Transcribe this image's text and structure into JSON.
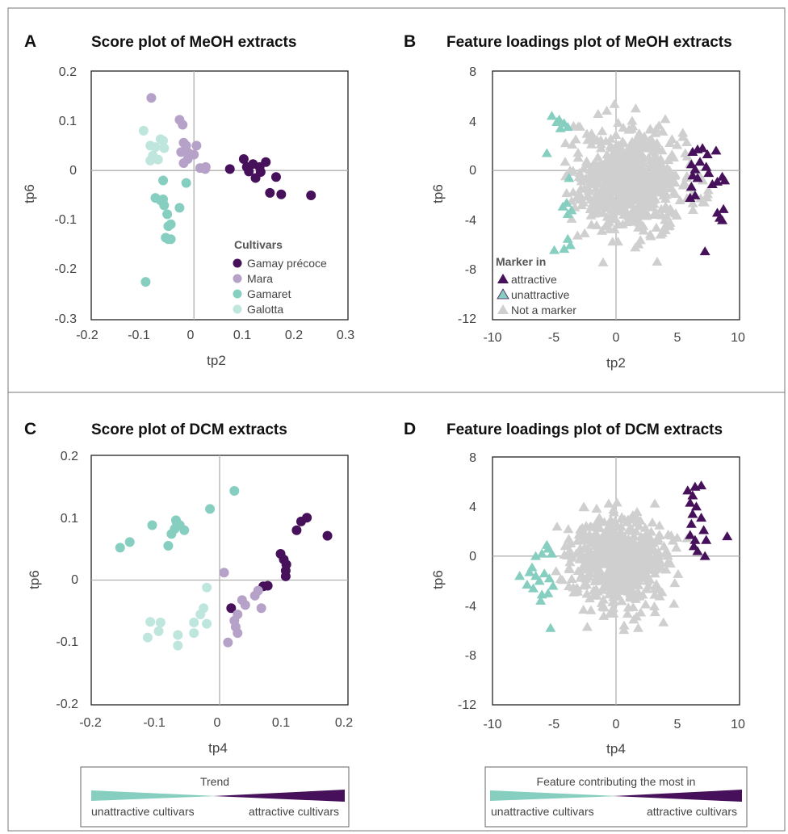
{
  "colors": {
    "gamay_precoce": "#46105a",
    "mara": "#b6a2c8",
    "gamaret": "#86cfc0",
    "galotta": "#bfe6dd",
    "attractive": "#46105a",
    "unattractive": "#86cfc0",
    "not_marker": "#cfcfcf"
  },
  "chart_data": [
    {
      "panel": "A",
      "type": "scatter",
      "title": "Score plot of MeOH extracts",
      "xlabel": "tp2",
      "ylabel": "tp6",
      "xlim": [
        -0.2,
        0.3
      ],
      "ylim": [
        -0.3,
        0.2
      ],
      "xticks": [
        "-0.2",
        "-0.1",
        "0",
        "0.1",
        "0.2",
        "0.3"
      ],
      "yticks": [
        "0.2",
        "0.1",
        "0",
        "-0.1",
        "-0.2",
        "-0.3"
      ],
      "legend_title": "Cultivars",
      "legend_position": "bottom-right",
      "series": [
        {
          "name": "Gamay précoce",
          "color": "gamay_precoce",
          "points": [
            [
              0.07,
              0.003
            ],
            [
              0.097,
              0.023
            ],
            [
              0.103,
              0.007
            ],
            [
              0.107,
              -0.002
            ],
            [
              0.115,
              0.013
            ],
            [
              0.128,
              0.007
            ],
            [
              0.13,
              -0.003
            ],
            [
              0.14,
              0.017
            ],
            [
              0.148,
              -0.045
            ],
            [
              0.12,
              -0.015
            ],
            [
              0.16,
              -0.013
            ],
            [
              0.17,
              -0.048
            ],
            [
              0.228,
              -0.05
            ]
          ]
        },
        {
          "name": "Mara",
          "color": "mara",
          "points": [
            [
              -0.083,
              0.146
            ],
            [
              -0.028,
              0.102
            ],
            [
              -0.022,
              0.092
            ],
            [
              -0.02,
              0.056
            ],
            [
              -0.015,
              0.05
            ],
            [
              -0.025,
              0.037
            ],
            [
              -0.01,
              0.035
            ],
            [
              0.0,
              0.032
            ],
            [
              0.005,
              0.05
            ],
            [
              -0.02,
              0.015
            ],
            [
              -0.012,
              0.023
            ],
            [
              0.023,
              0.007
            ],
            [
              0.012,
              0.005
            ],
            [
              0.022,
              0.003
            ]
          ]
        },
        {
          "name": "Gamaret",
          "color": "gamaret",
          "points": [
            [
              -0.06,
              -0.02
            ],
            [
              -0.075,
              -0.055
            ],
            [
              -0.065,
              -0.06
            ],
            [
              -0.06,
              -0.058
            ],
            [
              -0.058,
              -0.07
            ],
            [
              -0.052,
              -0.088
            ],
            [
              -0.05,
              -0.112
            ],
            [
              -0.045,
              -0.108
            ],
            [
              -0.055,
              -0.135
            ],
            [
              -0.045,
              -0.138
            ],
            [
              -0.05,
              -0.138
            ],
            [
              -0.028,
              -0.075
            ],
            [
              -0.015,
              -0.025
            ],
            [
              -0.094,
              -0.224
            ]
          ]
        },
        {
          "name": "Galotta",
          "color": "galotta",
          "points": [
            [
              -0.098,
              0.08
            ],
            [
              -0.065,
              0.063
            ],
            [
              -0.06,
              0.06
            ],
            [
              -0.085,
              0.05
            ],
            [
              -0.075,
              0.047
            ],
            [
              -0.058,
              0.045
            ],
            [
              -0.08,
              0.03
            ],
            [
              -0.085,
              0.02
            ],
            [
              -0.07,
              0.022
            ]
          ]
        }
      ]
    },
    {
      "panel": "B",
      "type": "scatter",
      "title": "Feature loadings plot of MeOH extracts",
      "xlabel": "tp2",
      "ylabel": "tp6",
      "xlim": [
        -10,
        10
      ],
      "ylim": [
        -12,
        8
      ],
      "xticks": [
        "-10",
        "-5",
        "0",
        "5",
        "10"
      ],
      "yticks": [
        "8",
        "4",
        "0",
        "-4",
        "-8",
        "-12"
      ],
      "legend_title": "Marker in",
      "legend_position": "bottom-left",
      "legend": [
        "attractive",
        "unattractive",
        "Not a marker"
      ],
      "not_marker_cloud": {
        "center": [
          1.2,
          -0.8
        ],
        "spread": [
          4.0,
          3.2
        ],
        "count": 700,
        "xrange": [
          -4.2,
          7.5
        ],
        "yrange": [
          -8.5,
          6.2
        ]
      },
      "series": [
        {
          "name": "attractive",
          "color": "attractive",
          "points": [
            [
              6.2,
              1.5
            ],
            [
              6.6,
              1.7
            ],
            [
              7.0,
              1.8
            ],
            [
              7.4,
              1.3
            ],
            [
              8.1,
              1.6
            ],
            [
              6.1,
              0.5
            ],
            [
              6.4,
              0.1
            ],
            [
              6.8,
              0.7
            ],
            [
              7.3,
              0.3
            ],
            [
              6.2,
              -0.4
            ],
            [
              6.6,
              -0.6
            ],
            [
              7.5,
              -0.2
            ],
            [
              8.2,
              -0.9
            ],
            [
              8.8,
              -0.8
            ],
            [
              8.6,
              -0.5
            ],
            [
              6.1,
              -1.3
            ],
            [
              6.4,
              -2.0
            ],
            [
              8.2,
              -3.4
            ],
            [
              8.4,
              -3.8
            ],
            [
              8.7,
              -3.1
            ],
            [
              8.6,
              -4.0
            ],
            [
              7.2,
              -6.5
            ],
            [
              6.0,
              -2.2
            ],
            [
              7.8,
              -1.1
            ]
          ]
        },
        {
          "name": "unattractive",
          "color": "unattractive",
          "points": [
            [
              -5.2,
              4.4
            ],
            [
              -4.8,
              3.9
            ],
            [
              -4.5,
              3.4
            ],
            [
              -4.2,
              3.8
            ],
            [
              -3.9,
              3.5
            ],
            [
              -4.6,
              4.1
            ],
            [
              -5.6,
              1.4
            ],
            [
              -3.8,
              -0.6
            ],
            [
              -4.0,
              -2.6
            ],
            [
              -3.6,
              -3.2
            ],
            [
              -3.9,
              -3.5
            ],
            [
              -5.0,
              -6.4
            ],
            [
              -4.2,
              -6.3
            ],
            [
              -3.7,
              -6.0
            ],
            [
              -3.9,
              -5.5
            ],
            [
              -4.3,
              -2.9
            ]
          ]
        }
      ]
    },
    {
      "panel": "C",
      "type": "scatter",
      "title": "Score plot of DCM extracts",
      "xlabel": "tp4",
      "ylabel": "tp6",
      "xlim": [
        -0.2,
        0.2
      ],
      "ylim": [
        -0.2,
        0.2
      ],
      "xticks": [
        "-0.2",
        "-0.1",
        "0",
        "0.1",
        "0.2"
      ],
      "yticks": [
        "0.2",
        "0.1",
        "0",
        "-0.1",
        "-0.2"
      ],
      "series": [
        {
          "name": "Gamay précoce",
          "color": "gamay_precoce",
          "points": [
            [
              0.168,
              0.071
            ],
            [
              0.136,
              0.1
            ],
            [
              0.127,
              0.094
            ],
            [
              0.12,
              0.08
            ],
            [
              0.095,
              0.042
            ],
            [
              0.1,
              0.033
            ],
            [
              0.104,
              0.025
            ],
            [
              0.103,
              0.015
            ],
            [
              0.103,
              0.006
            ],
            [
              0.075,
              -0.009
            ],
            [
              0.068,
              -0.01
            ],
            [
              0.018,
              -0.045
            ]
          ]
        },
        {
          "name": "Mara",
          "color": "mara",
          "points": [
            [
              0.007,
              0.012
            ],
            [
              0.035,
              -0.032
            ],
            [
              0.04,
              -0.04
            ],
            [
              0.055,
              -0.025
            ],
            [
              0.06,
              -0.017
            ],
            [
              0.065,
              -0.045
            ],
            [
              0.028,
              -0.055
            ],
            [
              0.023,
              -0.065
            ],
            [
              0.025,
              -0.075
            ],
            [
              0.028,
              -0.085
            ],
            [
              0.013,
              -0.1
            ]
          ]
        },
        {
          "name": "Gamaret",
          "color": "gamaret",
          "points": [
            [
              0.023,
              0.143
            ],
            [
              -0.015,
              0.114
            ],
            [
              -0.068,
              0.096
            ],
            [
              -0.067,
              0.093
            ],
            [
              -0.062,
              0.088
            ],
            [
              -0.07,
              0.082
            ],
            [
              -0.075,
              0.074
            ],
            [
              -0.055,
              0.08
            ],
            [
              -0.105,
              0.088
            ],
            [
              -0.08,
              0.055
            ],
            [
              -0.14,
              0.061
            ],
            [
              -0.155,
              0.052
            ]
          ]
        },
        {
          "name": "Galotta",
          "color": "galotta",
          "points": [
            [
              -0.02,
              -0.012
            ],
            [
              -0.025,
              -0.045
            ],
            [
              -0.03,
              -0.055
            ],
            [
              -0.02,
              -0.07
            ],
            [
              -0.04,
              -0.068
            ],
            [
              -0.04,
              -0.085
            ],
            [
              -0.065,
              -0.088
            ],
            [
              -0.065,
              -0.105
            ],
            [
              -0.092,
              -0.068
            ],
            [
              -0.108,
              -0.067
            ],
            [
              -0.095,
              -0.082
            ],
            [
              -0.112,
              -0.092
            ]
          ]
        }
      ]
    },
    {
      "panel": "D",
      "type": "scatter",
      "title": "Feature loadings plot of DCM extracts",
      "xlabel": "tp4",
      "ylabel": "tp6",
      "xlim": [
        -10,
        10
      ],
      "ylim": [
        -12,
        8
      ],
      "xticks": [
        "-10",
        "-5",
        "0",
        "5",
        "10"
      ],
      "yticks": [
        "8",
        "4",
        "0",
        "-4",
        "-8",
        "-12"
      ],
      "not_marker_cloud": {
        "center": [
          0.3,
          -0.5
        ],
        "spread": [
          3.6,
          3.0
        ],
        "count": 650,
        "xrange": [
          -5.4,
          5.8
        ],
        "yrange": [
          -7.6,
          6.4
        ]
      },
      "series": [
        {
          "name": "attractive",
          "color": "attractive",
          "points": [
            [
              5.8,
              5.3
            ],
            [
              6.4,
              5.6
            ],
            [
              6.9,
              5.7
            ],
            [
              6.2,
              4.9
            ],
            [
              6.0,
              4.3
            ],
            [
              6.5,
              4.0
            ],
            [
              6.2,
              3.4
            ],
            [
              6.9,
              3.1
            ],
            [
              6.1,
              2.6
            ],
            [
              7.1,
              2.1
            ],
            [
              6.0,
              1.7
            ],
            [
              6.4,
              1.3
            ],
            [
              7.3,
              1.3
            ],
            [
              9.0,
              1.6
            ],
            [
              6.3,
              0.8
            ],
            [
              6.6,
              0.4
            ],
            [
              7.2,
              0.0
            ]
          ]
        },
        {
          "name": "unattractive",
          "color": "unattractive",
          "points": [
            [
              -6.5,
              0.0
            ],
            [
              -6.0,
              0.2
            ],
            [
              -5.5,
              0.6
            ],
            [
              -5.2,
              0.2
            ],
            [
              -7.8,
              -1.6
            ],
            [
              -7.0,
              -1.3
            ],
            [
              -6.5,
              -1.6
            ],
            [
              -6.2,
              -2.0
            ],
            [
              -5.8,
              -1.4
            ],
            [
              -5.4,
              -1.8
            ],
            [
              -7.2,
              -2.3
            ],
            [
              -6.7,
              -2.6
            ],
            [
              -6.0,
              -3.1
            ],
            [
              -5.5,
              -3.0
            ],
            [
              -5.1,
              -2.4
            ],
            [
              -6.1,
              -3.6
            ],
            [
              -5.3,
              -5.8
            ],
            [
              -5.6,
              0.9
            ],
            [
              -6.8,
              -0.9
            ]
          ]
        }
      ]
    }
  ],
  "trend_boxes": [
    {
      "title": "Trend",
      "left_label": "unattractive cultivars",
      "right_label": "attractive cultivars"
    },
    {
      "title": "Feature contributing the most in",
      "left_label": "unattractive cultivars",
      "right_label": "attractive cultivars"
    }
  ]
}
